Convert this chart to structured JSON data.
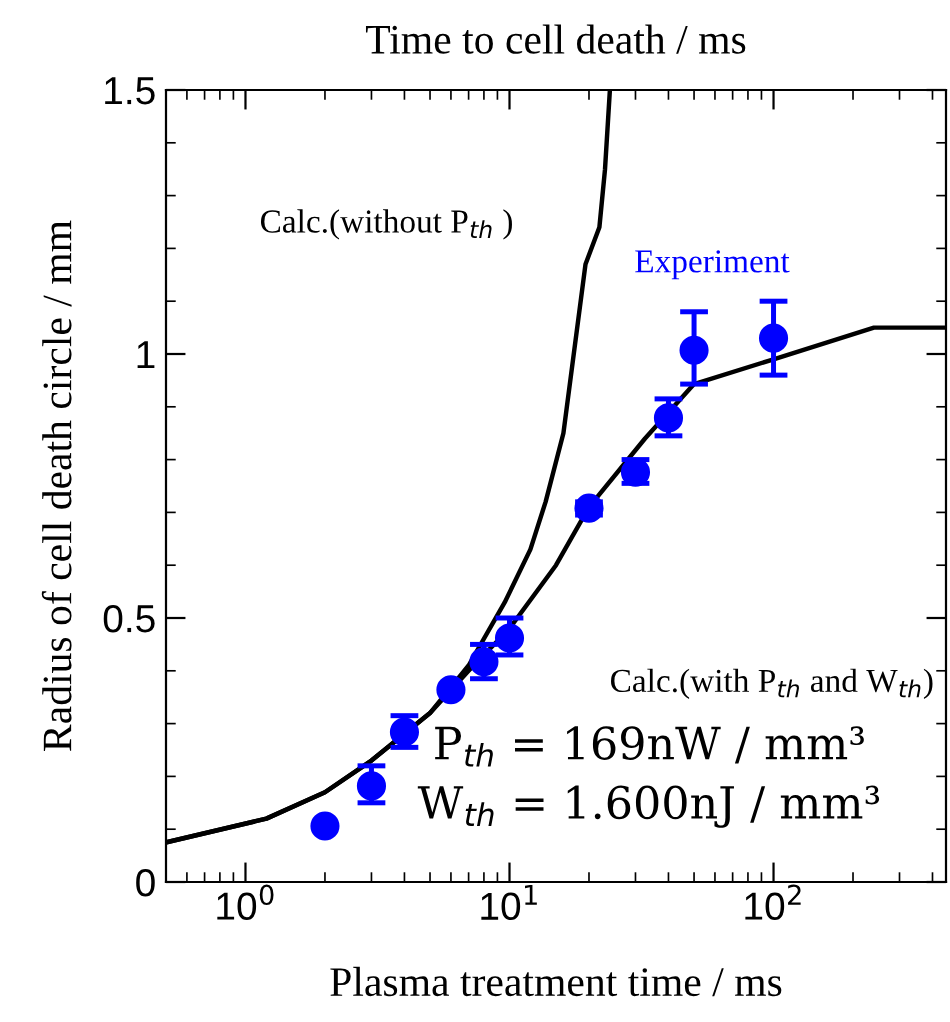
{
  "chart_data": {
    "type": "line",
    "xlabel": "Plasma treatment time / ms",
    "x2label": "Time to cell death / ms",
    "ylabel": "Radius of cell death circle / mm",
    "log": "x",
    "xlim": [
      0.5,
      450
    ],
    "xticks": [
      {
        "value": 1,
        "label": "10$^{0}$"
      },
      {
        "value": 10,
        "label": "10$^{1}$"
      },
      {
        "value": 100,
        "label": "10$^{2}$"
      }
    ],
    "ylim": [
      0,
      1.5
    ],
    "yticks": [
      0,
      0.5,
      1,
      1.5
    ],
    "grid": false,
    "series": [
      {
        "name": "Calc.(without P$_{th}$ )",
        "color": "#000000",
        "marker": "none",
        "line_style": "solid",
        "x": [
          0.5,
          1.2,
          2,
          3,
          5,
          7,
          9.6,
          12,
          13.7,
          16,
          19.4,
          21.9,
          23,
          24
        ],
        "values": [
          0.075,
          0.12,
          0.17,
          0.23,
          0.32,
          0.41,
          0.53,
          0.63,
          0.72,
          0.85,
          1.17,
          1.24,
          1.35,
          1.5
        ]
      },
      {
        "name": "Calc.(with P$_{th}$ and W$_{th}$)",
        "color": "#000000",
        "marker": "none",
        "line_style": "solid",
        "x": [
          0.5,
          1.2,
          2,
          3,
          5,
          7,
          10,
          15,
          20,
          32.6,
          50,
          100,
          240,
          450
        ],
        "values": [
          0.075,
          0.12,
          0.17,
          0.23,
          0.32,
          0.4,
          0.48,
          0.6,
          0.71,
          0.84,
          0.943,
          0.99,
          1.05,
          1.05
        ]
      },
      {
        "name": "Experiment",
        "type": "scatter",
        "color": "#0000ff",
        "marker": "circle",
        "x": [
          2,
          3,
          4,
          6,
          8,
          10,
          20,
          30,
          40,
          50,
          100
        ],
        "values": [
          0.106,
          0.182,
          0.284,
          0.364,
          0.417,
          0.462,
          0.708,
          0.776,
          0.879,
          1.007,
          1.03
        ],
        "errors": [
          null,
          [
            0.15,
            0.22
          ],
          [
            0.255,
            0.315
          ],
          null,
          [
            0.385,
            0.45
          ],
          [
            0.43,
            0.5
          ],
          [
            0.695,
            0.72
          ],
          [
            0.755,
            0.8
          ],
          [
            0.845,
            0.915
          ],
          [
            0.943,
            1.08
          ],
          [
            0.96,
            1.1
          ]
        ]
      }
    ],
    "annotations": [
      "P$_{th}$ = 169nW / mm³",
      "W$_{th}$ = 1.600nJ / mm³"
    ]
  }
}
